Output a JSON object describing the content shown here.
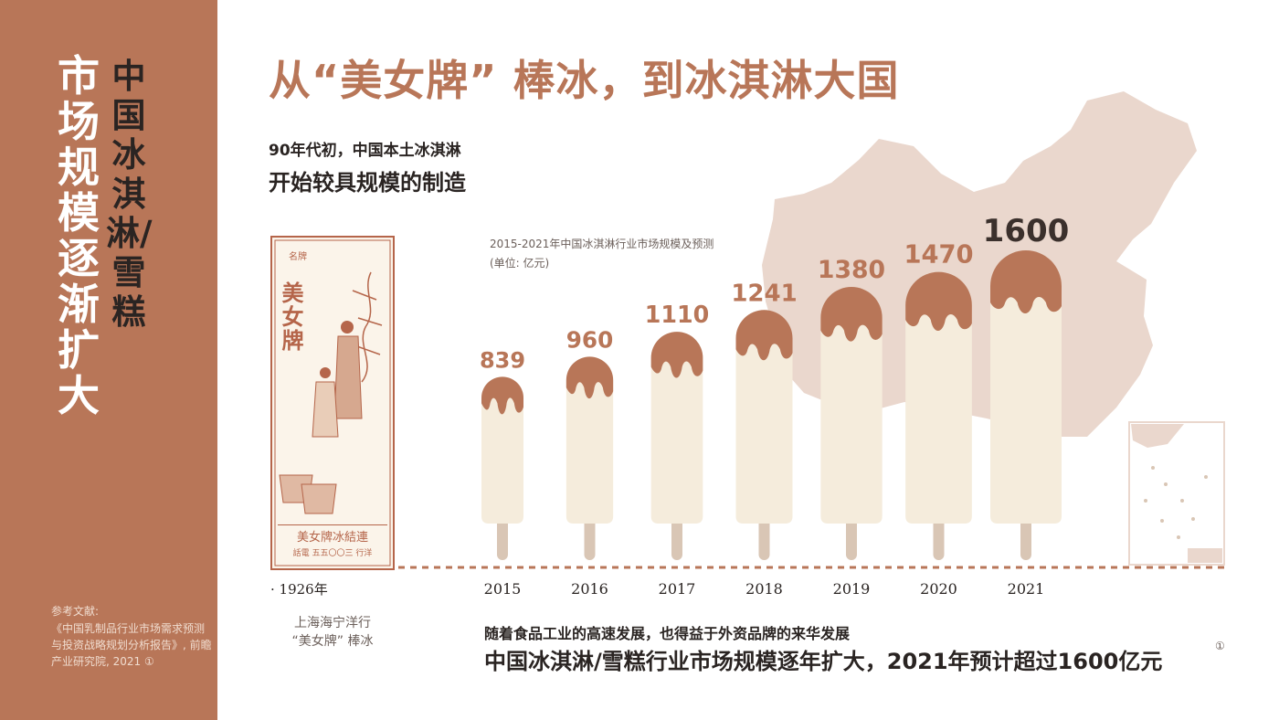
{
  "sidebar": {
    "title_main": "市场规模逐渐扩大",
    "title_sub": "中国冰淇淋/雪糕",
    "reference_label": "参考文献:",
    "reference_text": "《中国乳制品行业市场需求预测与投资战略规划分析报告》, 前瞻产业研究院, 2021 ①"
  },
  "header": {
    "title": "从“美女牌” 棒冰，到冰淇淋大国",
    "intro_line1": "90年代初，中国本土冰淇淋",
    "intro_line2": "开始较具规模的制造"
  },
  "poster": {
    "year": "· 1926年",
    "caption_line1": "上海海宁洋行",
    "caption_line2": "“美女牌” 棒冰",
    "brand_text": "美女牌",
    "tag_text": "名牌",
    "banner_text": "美女牌冰結連",
    "phone_text": "話電 五五〇〇三 行洋"
  },
  "footer": {
    "line1": "随着食品工业的高速发展，也得益于外资品牌的来华发展",
    "line2": "中国冰淇淋/雪糕行业市场规模逐年扩大，2021年预计超过1600亿元",
    "footnote_mark": "①"
  },
  "chart_data": {
    "type": "bar",
    "title": "2015-2021年中国冰淇淋行业市场规模及预测",
    "unit": "(单位: 亿元)",
    "categories": [
      "2015",
      "2016",
      "2017",
      "2018",
      "2019",
      "2020",
      "2021"
    ],
    "values": [
      839,
      960,
      1110,
      1241,
      1380,
      1470,
      1600
    ],
    "grid": false,
    "legend": "none",
    "colors": {
      "bar": "#f5ecdc",
      "chocolate": "#b87658",
      "stick": "#d9c6b5",
      "label": "#b87658",
      "label_highlight": "#3b302c",
      "map": "#ead7cd",
      "baseline": "#b87658"
    }
  }
}
